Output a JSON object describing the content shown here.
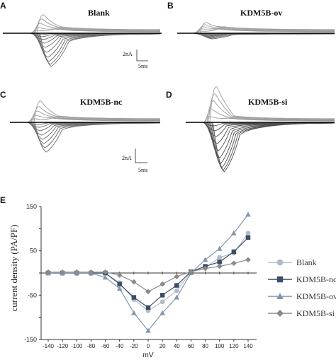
{
  "panels": [
    {
      "letter": "A",
      "title": "Blank",
      "scale_current": "2nA",
      "scale_time": "5ms",
      "color": "#6b6b6b",
      "negative_amplitudes": [
        2,
        5,
        9,
        14,
        20,
        27,
        34,
        40,
        44,
        47
      ],
      "positive_amplitudes": [
        4,
        8,
        14,
        20,
        26
      ],
      "decay": 1.0
    },
    {
      "letter": "B",
      "title": "KDM5B-ov",
      "scale_current": "",
      "scale_time": "",
      "color": "#6b6b6b",
      "negative_amplitudes": [
        1,
        2,
        3,
        4,
        5,
        6,
        7,
        8
      ],
      "positive_amplitudes": [
        3,
        6,
        9,
        12,
        15
      ],
      "decay": 1.3
    },
    {
      "letter": "C",
      "title": "KDM5B-nc",
      "scale_current": "2nA",
      "scale_time": "5ms",
      "color": "#6b6b6b",
      "negative_amplitudes": [
        3,
        7,
        12,
        18,
        24,
        30,
        36,
        42
      ],
      "positive_amplitudes": [
        5,
        10,
        16,
        22,
        30
      ],
      "decay": 1.0
    },
    {
      "letter": "D",
      "title": "KDM5B-si",
      "scale_current": "",
      "scale_time": "",
      "color": "#4d4d4d",
      "negative_amplitudes": [
        5,
        12,
        20,
        30,
        40,
        50,
        58,
        64,
        68,
        70
      ],
      "positive_amplitudes": [
        8,
        18,
        30,
        40,
        50
      ],
      "decay": 0.9
    }
  ],
  "panel_e_letter": "E",
  "chart_data": {
    "type": "line",
    "xlabel": "mV",
    "ylabel": "current density (PA/PF)",
    "x": [
      -140,
      -120,
      -100,
      -80,
      -60,
      -40,
      -20,
      0,
      20,
      40,
      60,
      80,
      100,
      120,
      140
    ],
    "xlim": [
      -150,
      150
    ],
    "ylim": [
      -150,
      150
    ],
    "yticks": [
      -150,
      -100,
      -50,
      0,
      50,
      100,
      150
    ],
    "ytick_labels": [
      "-150",
      "",
      "-50",
      "",
      "50",
      "",
      "150"
    ],
    "legend_position": "right",
    "series": [
      {
        "name": "Blank",
        "marker": "circle",
        "color": "#b3bcc9",
        "values": [
          0,
          -1,
          -1,
          -1,
          -1,
          -22,
          -60,
          -85,
          -65,
          -40,
          2,
          12,
          35,
          45,
          90
        ]
      },
      {
        "name": "KDM5B-nc",
        "marker": "square",
        "color": "#3c4e66",
        "values": [
          0,
          0,
          0,
          0,
          0,
          -25,
          -55,
          -78,
          -50,
          -28,
          3,
          15,
          25,
          48,
          80
        ]
      },
      {
        "name": "KDM5B-ov",
        "marker": "triangle",
        "color": "#8296ad",
        "values": [
          0,
          0,
          0,
          0,
          -10,
          -35,
          -90,
          -130,
          -90,
          -55,
          0,
          30,
          55,
          90,
          132
        ]
      },
      {
        "name": "KDM5B-si",
        "marker": "diamond",
        "color": "#8a8a8a",
        "values": [
          2,
          2,
          2,
          2,
          2,
          -5,
          -20,
          -42,
          -25,
          -8,
          3,
          10,
          15,
          22,
          30
        ]
      }
    ]
  }
}
